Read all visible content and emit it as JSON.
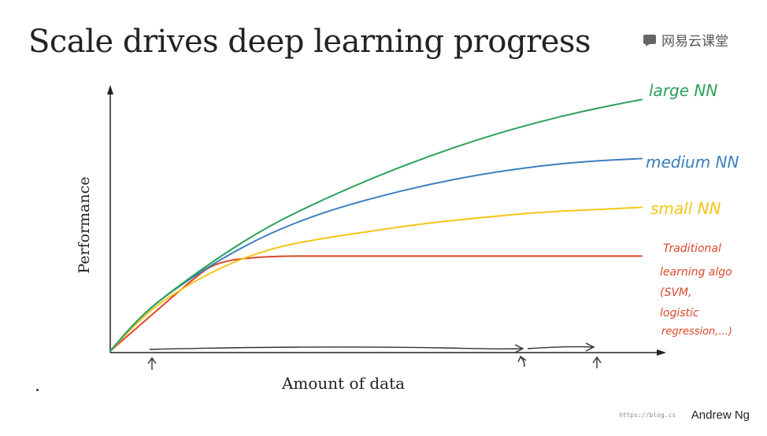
{
  "title": "Scale drives deep learning progress",
  "logo": {
    "text": "网易云课堂",
    "icon": "chat-bubble-icon"
  },
  "author": "Andrew Ng",
  "watermark": "https://blog.cs",
  "chart_data": {
    "type": "line",
    "title": "Scale drives deep learning progress",
    "xlabel": "Amount of data",
    "ylabel": "Performance",
    "xlim": [
      0,
      10
    ],
    "ylim": [
      0,
      10
    ],
    "grid": false,
    "legend": "right, labels at line ends",
    "series": [
      {
        "name": "large NN",
        "color": "#2aa05a",
        "x": [
          0,
          0.5,
          1,
          2,
          3,
          4,
          5,
          6,
          7,
          8,
          9,
          10
        ],
        "y": [
          0,
          1.2,
          2.1,
          3.6,
          4.9,
          5.9,
          6.8,
          7.6,
          8.3,
          8.9,
          9.4,
          9.8
        ]
      },
      {
        "name": "medium NN",
        "color": "#3b7fbf",
        "x": [
          0,
          0.5,
          1,
          2,
          3,
          4,
          5,
          6,
          7,
          8,
          9,
          10
        ],
        "y": [
          0,
          1.2,
          2.1,
          3.5,
          4.6,
          5.4,
          6.0,
          6.5,
          6.9,
          7.2,
          7.4,
          7.5
        ]
      },
      {
        "name": "small NN",
        "color": "#f5c518",
        "x": [
          0,
          0.5,
          1,
          2,
          3,
          4,
          5,
          6,
          7,
          8,
          9,
          10
        ],
        "y": [
          0,
          1.1,
          2.0,
          3.2,
          4.0,
          4.4,
          4.7,
          5.0,
          5.2,
          5.4,
          5.5,
          5.6
        ]
      },
      {
        "name": "Traditional learning algo (SVM, logistic regression,...)",
        "color": "#d9472b",
        "x": [
          0,
          0.5,
          1,
          1.5,
          2,
          3,
          4,
          5,
          6,
          7,
          8,
          9,
          10
        ],
        "y": [
          0,
          0.9,
          1.8,
          2.7,
          3.5,
          3.7,
          3.7,
          3.7,
          3.7,
          3.7,
          3.7,
          3.7,
          3.7
        ]
      }
    ],
    "labels": {
      "large": "large NN",
      "medium": "medium NN",
      "small": "small NN",
      "trad": [
        "Traditional",
        "learning algo",
        "(SVM,",
        "logistic",
        "regression,...)"
      ]
    }
  }
}
